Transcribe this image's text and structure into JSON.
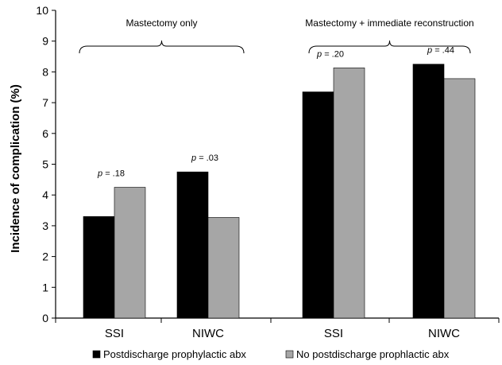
{
  "chart_data": {
    "type": "bar",
    "ylabel": "Incidence of complication (%)",
    "xlabel": "",
    "ylim": [
      0,
      10
    ],
    "yticks": [
      0,
      1,
      2,
      3,
      4,
      5,
      6,
      7,
      8,
      9,
      10
    ],
    "categories": [
      "SSI",
      "NIWC",
      "SSI",
      "NIWC"
    ],
    "series": [
      {
        "name": "Postdischarge prophylactic abx",
        "color": "#000000",
        "values": [
          3.3,
          4.75,
          7.35,
          8.25
        ]
      },
      {
        "name": "No postdischarge prophlactic abx",
        "color": "#a6a6a6",
        "values": [
          4.25,
          3.27,
          8.13,
          7.78
        ]
      }
    ],
    "groups": [
      {
        "label": "Mastectomy only",
        "categories": [
          0,
          1
        ]
      },
      {
        "label": "Mastectomy + immediate reconstruction",
        "categories": [
          2,
          3
        ]
      }
    ],
    "annotations": [
      {
        "category": 0,
        "prefix": "p",
        "text": " = .18"
      },
      {
        "category": 1,
        "prefix": "p",
        "text": " = .03"
      },
      {
        "category": 2,
        "prefix": "p",
        "text": " = .20"
      },
      {
        "category": 3,
        "prefix": "p",
        "text": " = .44"
      }
    ],
    "legend_position": "bottom",
    "grid": false
  }
}
